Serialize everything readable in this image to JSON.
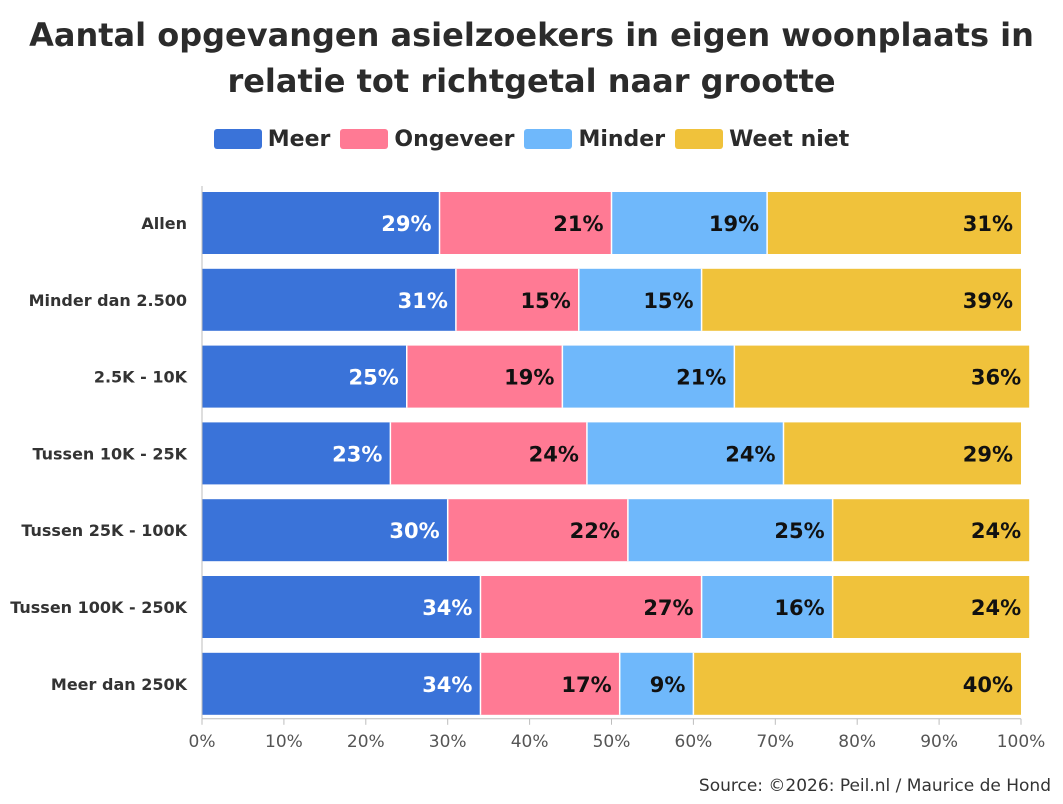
{
  "chart_data": {
    "type": "bar",
    "orientation": "horizontal",
    "stacked": true,
    "title": "Aantal opgevangen asielzoekers in eigen woonplaats in relatie tot richtgetal naar grootte",
    "categories": [
      "Allen",
      "Minder dan 2.500",
      "2.5K - 10K",
      "Tussen 10K - 25K",
      "Tussen 25K - 100K",
      "Tussen 100K - 250K",
      "Meer dan 250K"
    ],
    "series": [
      {
        "name": "Meer",
        "color": "#3a73d9",
        "label_color": "#ffffff",
        "values": [
          29,
          31,
          25,
          23,
          30,
          34,
          34
        ]
      },
      {
        "name": "Ongeveer",
        "color": "#ff7a94",
        "label_color": "#111111",
        "values": [
          21,
          15,
          19,
          24,
          22,
          27,
          17
        ]
      },
      {
        "name": "Minder",
        "color": "#6fb8fb",
        "label_color": "#111111",
        "values": [
          19,
          15,
          21,
          24,
          25,
          16,
          9
        ]
      },
      {
        "name": "Weet niet",
        "color": "#f0c23b",
        "label_color": "#111111",
        "values": [
          31,
          39,
          36,
          29,
          24,
          24,
          40
        ]
      }
    ],
    "xlim": [
      0,
      100
    ],
    "x_ticks": [
      "0%",
      "10%",
      "20%",
      "30%",
      "40%",
      "50%",
      "60%",
      "70%",
      "80%",
      "90%",
      "100%"
    ],
    "value_suffix": "%",
    "legend_position": "top-center",
    "grid": false
  },
  "source": "Source: ©2026: Peil.nl / Maurice de Hond"
}
